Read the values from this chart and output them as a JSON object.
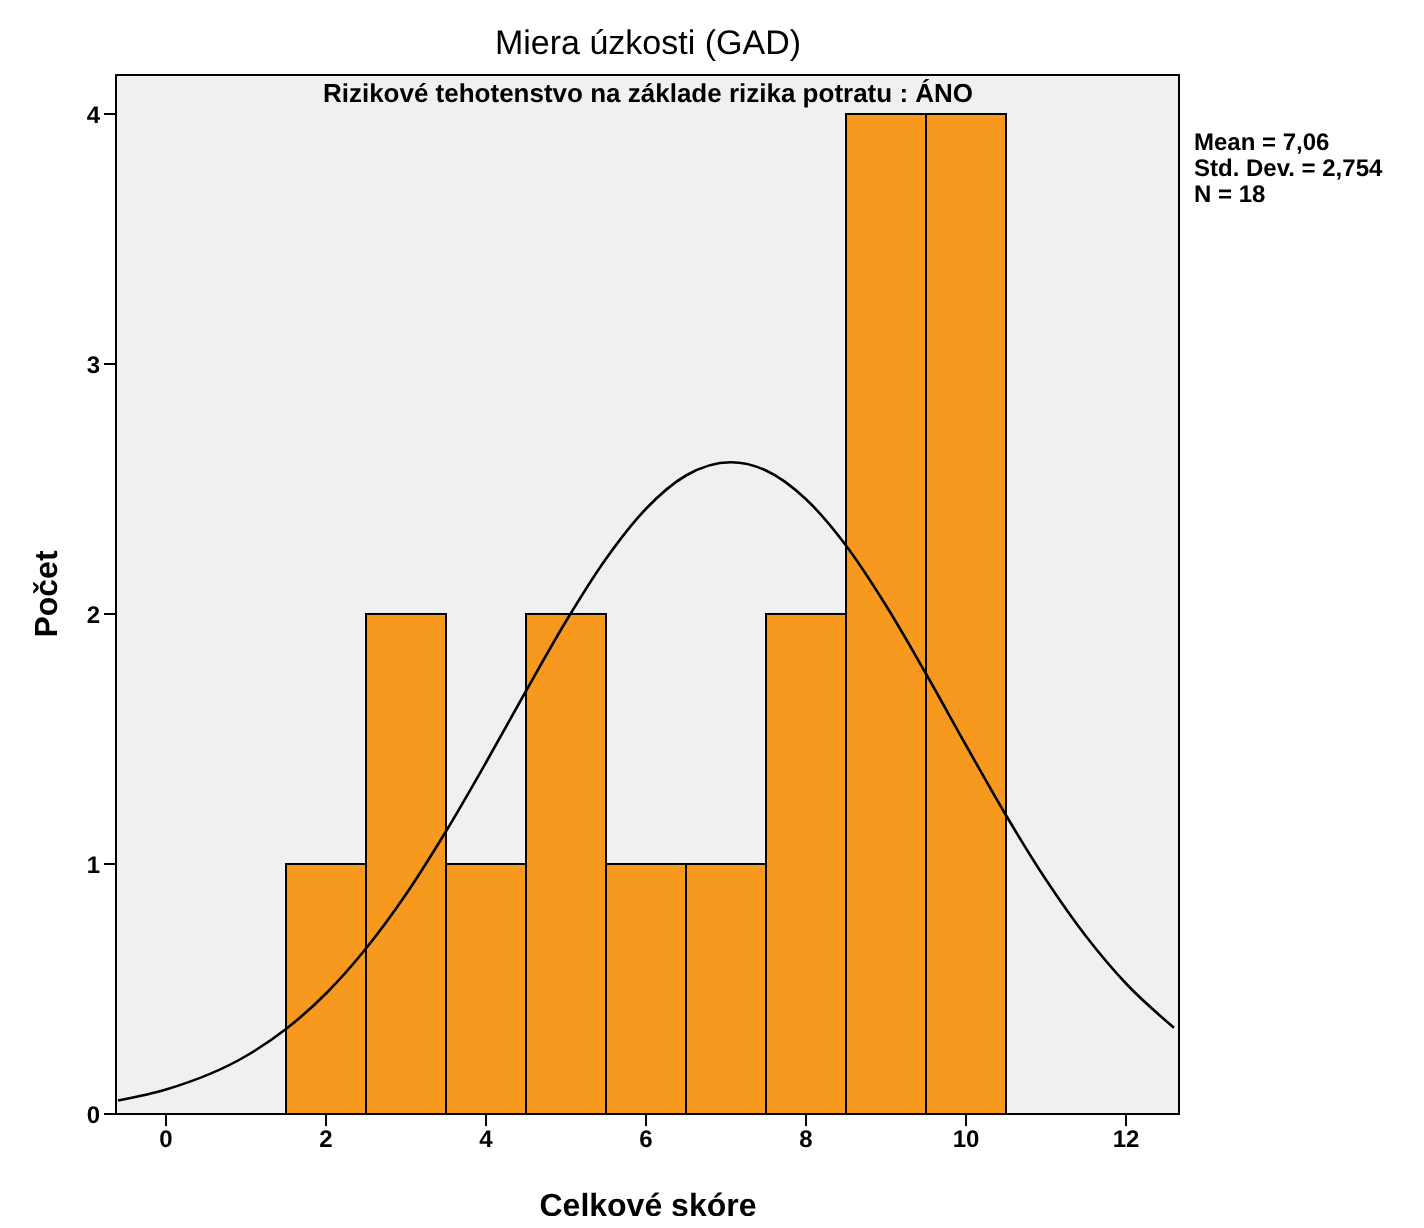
{
  "chart_data": {
    "type": "histogram",
    "title": "Miera úzkosti (GAD)",
    "subtitle": "Rizikové tehotenstvo na základe rizika potratu : ÁNO",
    "xlabel": "Celkové skóre",
    "ylabel": "Počet",
    "bins": [
      1.5,
      2.5,
      3.5,
      4.5,
      5.5,
      6.5,
      7.5,
      8.5,
      9.5,
      10.5
    ],
    "values": [
      1,
      2,
      1,
      2,
      1,
      1,
      2,
      4,
      4
    ],
    "color": "#f7991f",
    "series": [
      {
        "type": "line",
        "color": "#000000",
        "x": [
          -0.6,
          0,
          1,
          1.5,
          2,
          2.5,
          3,
          3.5,
          4,
          4.5,
          5,
          5.5,
          6,
          6.5,
          7.06,
          7.5,
          8,
          8.5,
          9,
          9.5,
          10,
          10.5,
          11,
          11.5,
          12,
          12.6
        ],
        "values": [
          0.054,
          0.098,
          0.232,
          0.34,
          0.482,
          0.662,
          0.879,
          1.131,
          1.406,
          1.692,
          1.971,
          2.221,
          2.421,
          2.554,
          2.607,
          2.574,
          2.459,
          2.274,
          2.034,
          1.761,
          1.475,
          1.195,
          0.937,
          0.711,
          0.522,
          0.345
        ]
      }
    ],
    "annotations": [
      "Mean = 7,06",
      "Std. Dev. = 2,754",
      "N = 18"
    ],
    "xlim": [
      -0.625,
      12.675
    ],
    "xticks": [
      0,
      2,
      4,
      6,
      8,
      10,
      12
    ],
    "ylim": [
      0,
      4.16
    ],
    "yticks": [
      0,
      1,
      2,
      3,
      4
    ],
    "grid": false,
    "marker": "none"
  }
}
